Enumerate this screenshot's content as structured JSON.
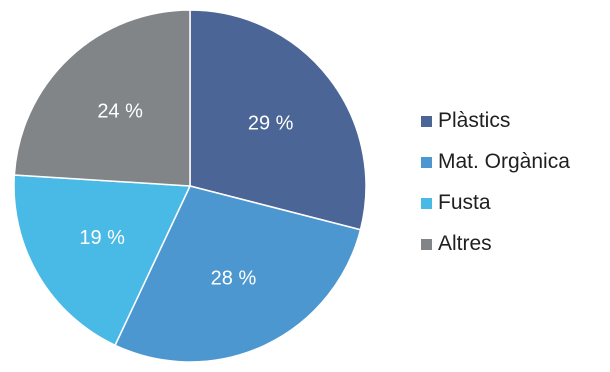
{
  "chart_data": {
    "type": "pie",
    "categories": [
      "Plàstics",
      "Mat. Orgànica",
      "Fusta",
      "Altres"
    ],
    "values": [
      29,
      28,
      19,
      24
    ],
    "labels": [
      "29 %",
      "28 %",
      "19 %",
      "24 %"
    ],
    "colors": [
      "#4a6596",
      "#4d97d1",
      "#49b9e6",
      "#828587"
    ],
    "label_color": "#ffffff",
    "legend_position": "right",
    "start_angle_deg": 0,
    "direction": "clockwise"
  }
}
